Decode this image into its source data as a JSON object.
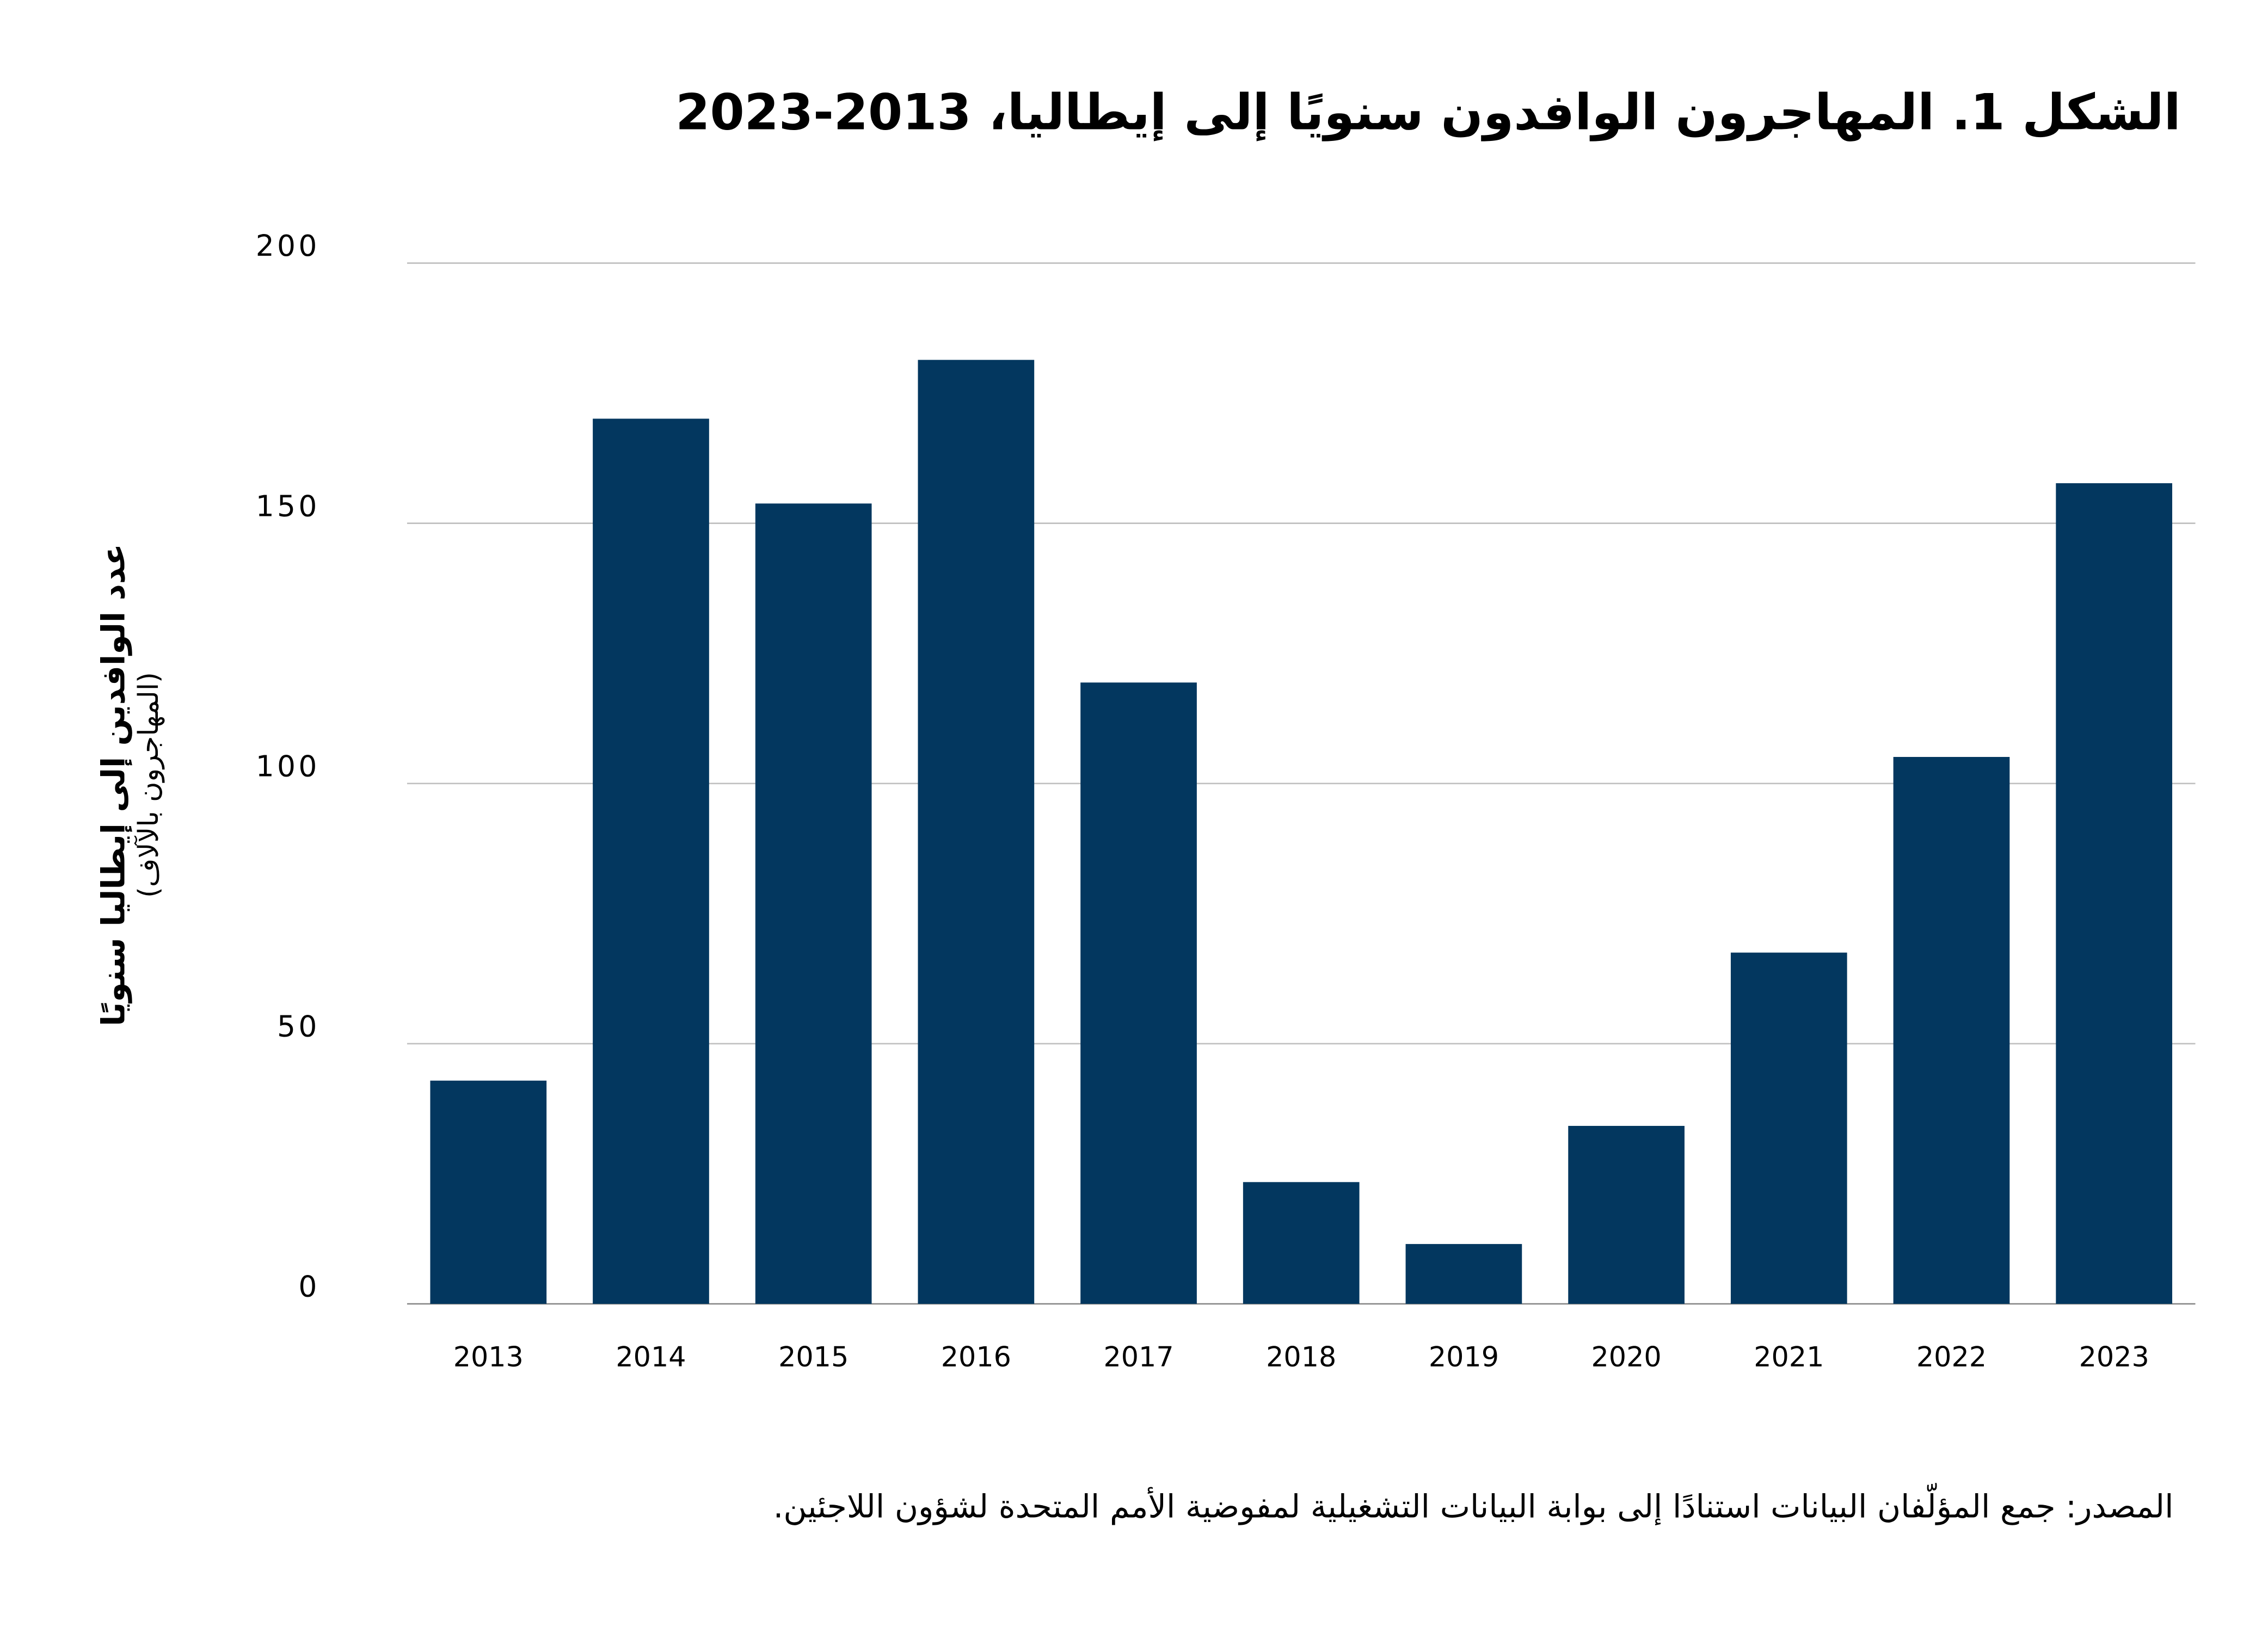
{
  "chart_data": {
    "type": "bar",
    "title": "الشكل 1. المهاجرون الوافدون سنويًا إلى إيطاليا، 2013-2023",
    "ylabel": "عدد الوافدين إلى إيطاليا سنويًا",
    "ylabel_sub": "(المهاجرون بالآلاف)",
    "xlabel": "",
    "categories": [
      "2013",
      "2014",
      "2015",
      "2016",
      "2017",
      "2018",
      "2019",
      "2020",
      "2021",
      "2022",
      "2023"
    ],
    "values": [
      42.9,
      170.1,
      153.8,
      181.4,
      119.4,
      23.4,
      11.5,
      34.2,
      67.5,
      105.1,
      157.7
    ],
    "ylim": [
      0,
      200
    ],
    "yticks": [
      "0",
      "50",
      "100",
      "150",
      "200"
    ],
    "grid": true,
    "bar_color": "#03375f",
    "grid_color": "#c0c0c0",
    "source": "المصدر: جمع المؤلّفان البيانات استنادًا إلى بوابة البيانات التشغيلية لمفوضية الأمم المتحدة لشؤون اللاجئين."
  }
}
